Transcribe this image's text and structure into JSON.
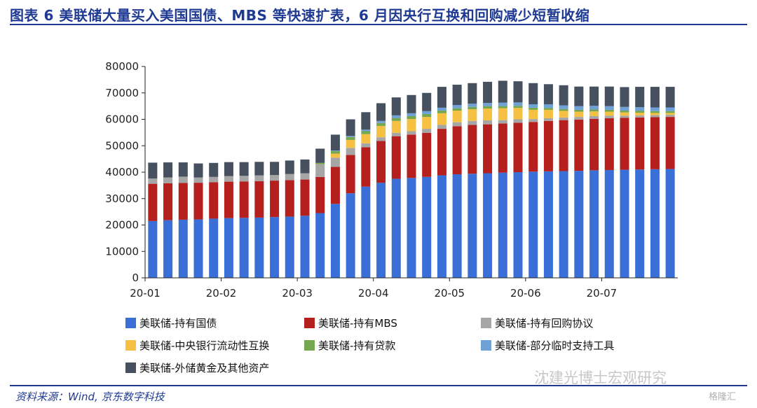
{
  "header": {
    "title": "图表 6 美联储大量买入美国国债、MBS 等快速扩表，6 月因央行互换和回购减少短暂收缩"
  },
  "footer": {
    "source": "资料来源：Wind, 京东数字科技",
    "watermark": "沈建光博士宏观研究",
    "logo": "格隆汇"
  },
  "colors": {
    "title": "#1f3a93",
    "treasuries": "#3a6fd8",
    "mbs": "#b5201f",
    "repo": "#a6a6a6",
    "cb_swaps": "#f6c143",
    "loans": "#75a84e",
    "facilities": "#6fa0d6",
    "other": "#46505f"
  },
  "chart_data": {
    "type": "bar",
    "stacked": true,
    "title": "",
    "xlabel": "",
    "ylabel": "",
    "ylim": [
      0,
      80000
    ],
    "yticks": [
      0,
      10000,
      20000,
      30000,
      40000,
      50000,
      60000,
      70000,
      80000
    ],
    "xtick_labels": [
      {
        "label": "20-01",
        "index": 0
      },
      {
        "label": "20-02",
        "index": 5
      },
      {
        "label": "20-03",
        "index": 10
      },
      {
        "label": "20-04",
        "index": 15
      },
      {
        "label": "20-05",
        "index": 20
      },
      {
        "label": "20-06",
        "index": 25
      },
      {
        "label": "20-07",
        "index": 30
      }
    ],
    "grid": false,
    "legend_position": "bottom",
    "categories": [
      "w1",
      "w2",
      "w3",
      "w4",
      "w5",
      "w6",
      "w7",
      "w8",
      "w9",
      "w10",
      "w11",
      "w12",
      "w13",
      "w14",
      "w15",
      "w16",
      "w17",
      "w18",
      "w19",
      "w20",
      "w21",
      "w22",
      "w23",
      "w24",
      "w25",
      "w26",
      "w27",
      "w28",
      "w29",
      "w30",
      "w31",
      "w32",
      "w33",
      "w34",
      "w35"
    ],
    "series": [
      {
        "name": "美联储-持有国债",
        "color_key": "treasuries",
        "values": [
          21500,
          21800,
          22000,
          22100,
          22400,
          22600,
          22700,
          22800,
          23000,
          23200,
          23500,
          24500,
          28000,
          32000,
          34500,
          36000,
          37500,
          37800,
          38200,
          38800,
          39200,
          39400,
          39600,
          39800,
          40000,
          40200,
          40300,
          40400,
          40500,
          40700,
          40800,
          40900,
          41000,
          41100,
          41200
        ]
      },
      {
        "name": "美联储-持有MBS",
        "color_key": "mbs",
        "values": [
          14100,
          14000,
          13900,
          13900,
          13800,
          13800,
          13800,
          13800,
          13800,
          13800,
          13700,
          13700,
          14000,
          14500,
          14900,
          15800,
          16100,
          16400,
          16700,
          17600,
          18200,
          18500,
          18500,
          18600,
          18700,
          18800,
          19100,
          19300,
          19400,
          19500,
          19600,
          19700,
          19700,
          19700,
          19700
        ]
      },
      {
        "name": "美联储-持有回购协议",
        "color_key": "repo",
        "values": [
          2000,
          2200,
          2400,
          2000,
          2000,
          2100,
          2100,
          2200,
          2100,
          2300,
          2400,
          4800,
          3500,
          2700,
          1500,
          1400,
          1300,
          1300,
          1500,
          1500,
          1500,
          1500,
          1500,
          1300,
          1300,
          1100,
          1000,
          1000,
          1000,
          1000,
          1000,
          800,
          800,
          800,
          800
        ]
      },
      {
        "name": "美联储-中央银行流动性互换",
        "color_key": "cb_swaps",
        "values": [
          0,
          0,
          0,
          0,
          0,
          0,
          0,
          0,
          0,
          0,
          0,
          0,
          1500,
          3000,
          3500,
          4300,
          4500,
          4600,
          4500,
          4400,
          4400,
          4400,
          4500,
          4500,
          4300,
          3500,
          3200,
          2500,
          2000,
          1800,
          1500,
          1200,
          1000,
          800,
          700
        ]
      },
      {
        "name": "美联储-持有贷款",
        "color_key": "loans",
        "values": [
          0,
          0,
          0,
          0,
          0,
          0,
          0,
          0,
          0,
          0,
          0,
          500,
          1000,
          1100,
          1100,
          1100,
          1100,
          1100,
          1100,
          1000,
          900,
          900,
          900,
          800,
          800,
          800,
          700,
          700,
          700,
          700,
          700,
          700,
          700,
          700,
          700
        ]
      },
      {
        "name": "美联储-部分临时支持工具",
        "color_key": "facilities",
        "values": [
          0,
          0,
          0,
          0,
          0,
          0,
          0,
          0,
          0,
          0,
          0,
          0,
          200,
          400,
          600,
          800,
          1000,
          1100,
          1100,
          1100,
          1200,
          1200,
          1200,
          1300,
          1300,
          1300,
          1400,
          1400,
          1400,
          1400,
          1400,
          1400,
          1400,
          1400,
          1400
        ]
      },
      {
        "name": "美联储-外储黄金及其他资产",
        "color_key": "other",
        "values": [
          6000,
          5700,
          5400,
          5300,
          5300,
          5300,
          5200,
          5100,
          5000,
          5100,
          5200,
          5400,
          6000,
          6300,
          6600,
          6700,
          6800,
          6900,
          6900,
          7900,
          7700,
          7800,
          8000,
          8300,
          8000,
          8000,
          7600,
          7600,
          7400,
          7300,
          7400,
          7500,
          7700,
          7800,
          7800
        ]
      }
    ]
  }
}
